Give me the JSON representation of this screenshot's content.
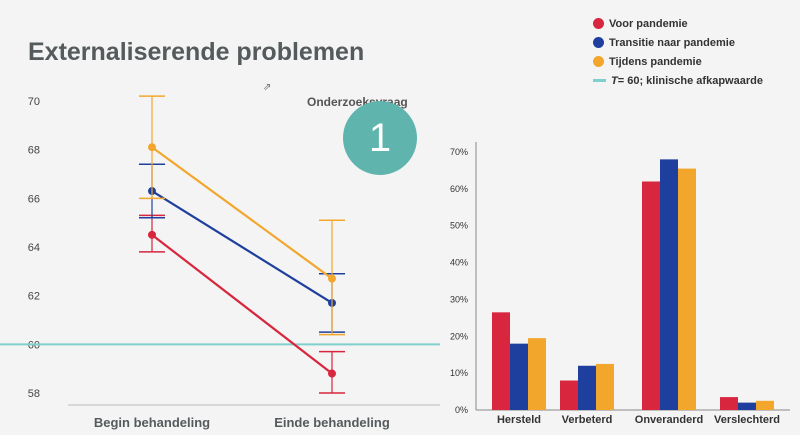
{
  "slide": {
    "title": "Externaliserende problemen",
    "research_question_label": "Onderzoeksvraag",
    "research_question_number": "1",
    "teal_color": "#5fb5ad"
  },
  "legend": {
    "items": [
      {
        "label": "Voor pandemie",
        "color": "#d7263d",
        "marker": "dot"
      },
      {
        "label": "Transitie naar pandemie",
        "color": "#1f3f9e",
        "marker": "dot"
      },
      {
        "label": "Tijdens pandemie",
        "color": "#f2a72c",
        "marker": "dot"
      }
    ],
    "threshold_prefix": "T",
    "threshold_text": " = 60; klinische afkapwaarde",
    "threshold_color": "#7fcfcc"
  },
  "chart_data": [
    {
      "type": "line",
      "title": "Externaliserende problemen",
      "categories": [
        "Begin behandeling",
        "Einde behandeling"
      ],
      "ylim": [
        57.5,
        70.5
      ],
      "yticks": [
        58,
        60,
        62,
        64,
        66,
        68,
        70
      ],
      "threshold": 60,
      "series": [
        {
          "name": "Voor pandemie",
          "color": "#d7263d",
          "values": [
            64.5,
            58.8
          ],
          "err_low": [
            63.8,
            58.0
          ],
          "err_high": [
            65.3,
            59.7
          ]
        },
        {
          "name": "Transitie naar pandemie",
          "color": "#1f3f9e",
          "values": [
            66.3,
            61.7
          ],
          "err_low": [
            65.2,
            60.5
          ],
          "err_high": [
            67.4,
            62.9
          ]
        },
        {
          "name": "Tijdens pandemie",
          "color": "#f2a72c",
          "values": [
            68.1,
            62.7
          ],
          "err_low": [
            66.0,
            60.4
          ],
          "err_high": [
            70.2,
            65.1
          ]
        }
      ]
    },
    {
      "type": "bar",
      "categories": [
        "Hersteld",
        "Verbeterd",
        "Onveranderd",
        "Verslechterd"
      ],
      "ylim": [
        0,
        70
      ],
      "yticks": [
        "0%",
        "10%",
        "20%",
        "30%",
        "40%",
        "50%",
        "60%",
        "70%"
      ],
      "series": [
        {
          "name": "Voor pandemie",
          "color": "#d7263d",
          "values": [
            26.5,
            8,
            62,
            3.5
          ]
        },
        {
          "name": "Transitie naar pandemie",
          "color": "#1f3f9e",
          "values": [
            18,
            12,
            68,
            2
          ]
        },
        {
          "name": "Tijdens pandemie",
          "color": "#f2a72c",
          "values": [
            19.5,
            12.5,
            65.5,
            2.5
          ]
        }
      ]
    }
  ]
}
